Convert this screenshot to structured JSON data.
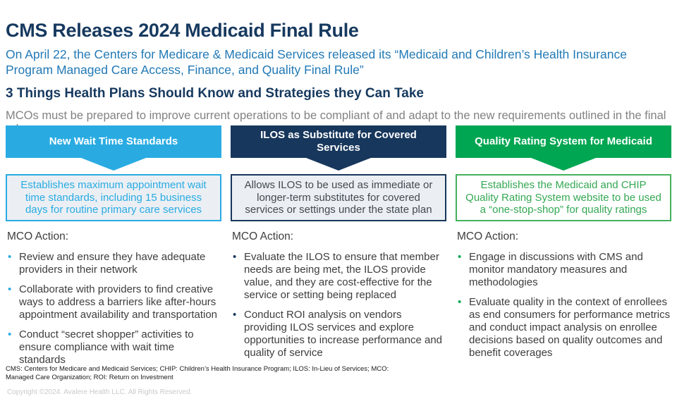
{
  "slide": {
    "title": "CMS Releases 2024 Medicaid Final Rule",
    "subtitle_line1": "On April 22, the Centers for Medicare & Medicaid Services released its “Medicaid and Children’s Health Insurance",
    "subtitle_line2": "Program Managed Care Access, Finance, and Quality Final Rule”",
    "section_heading": "3 Things Health Plans Should Know and Strategies they Can Take",
    "lede": "MCOs must be prepared to improve current operations to be compliant of and adapt to the new requirements outlined in the final rule"
  },
  "columns": [
    {
      "header": "New Wait Time Standards",
      "summary": "Establishes maximum appointment wait time standards, including 15 business days for routine primary care services",
      "action_label": "MCO Action:",
      "bullets": [
        "Review and ensure they have adequate providers in their network",
        "Collaborate with providers to find creative ways to address a barriers like after-hours appointment availability and transportation",
        "Conduct “secret shopper” activities to ensure compliance with wait time standards"
      ],
      "accent_color": "#29ABE2"
    },
    {
      "header": "ILOS as Substitute for Covered Services",
      "summary": "Allows ILOS to be used as immediate or longer-term substitutes for covered services or settings under the state plan",
      "action_label": "MCO Action:",
      "bullets": [
        "Evaluate the ILOS to ensure that member needs are being met, the ILOS provide value, and they are cost-effective for the service or setting being replaced",
        "Conduct ROI analysis on vendors providing ILOS services and explore opportunities to increase performance and quality of service"
      ],
      "accent_color": "#17375C"
    },
    {
      "header": "Quality Rating System for Medicaid",
      "summary": "Establishes the Medicaid and CHIP Quality Rating System website to be used a “one-stop-shop” for quality ratings",
      "action_label": "MCO Action:",
      "bullets": [
        "Engage in discussions with CMS and monitor mandatory measures and methodologies",
        "Evaluate quality in the context of enrollees as end consumers for performance metrics and conduct impact analysis on enrollee decisions based on quality outcomes and benefit coverages"
      ],
      "accent_color": "#00A651"
    }
  ],
  "footer": {
    "footnote_line1": "CMS: Centers for Medicare and Medicaid Services; CHIP: Children’s Health Insurance Program; ILOS: In-Lieu of Services; MCO:",
    "footnote_line2": "Managed Care Organization; ROI: Return on Investment",
    "copyright": "Copyright ©2024. Avalere Health LLC. All Rights Reserved."
  },
  "colors": {
    "title_navy": "#16395F",
    "subtitle_blue": "#2179B6",
    "lede_gray": "#828282",
    "body_text": "#3D3D3D",
    "box_background_gray": "#EBEFF4",
    "accent_blue": "#29ABE2",
    "accent_navy": "#17375C",
    "accent_green": "#00A651"
  }
}
